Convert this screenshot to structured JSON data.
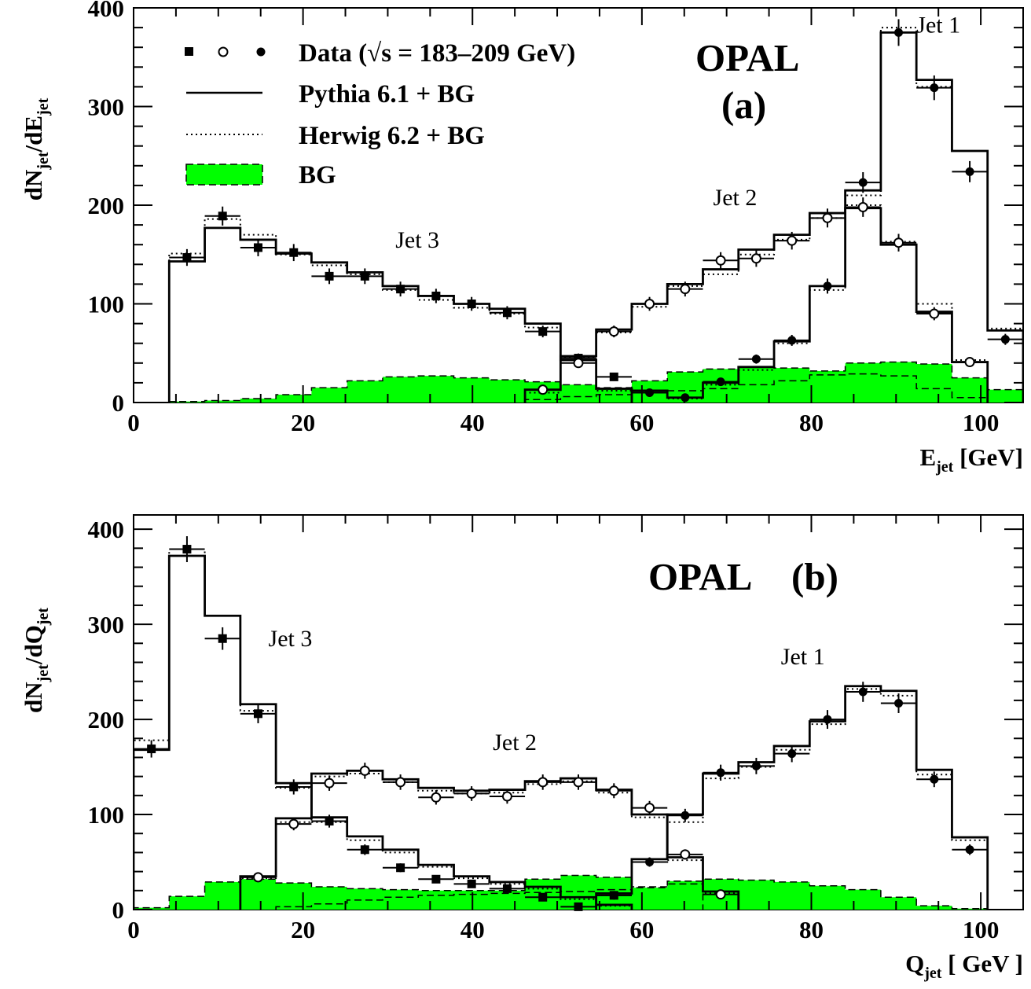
{
  "chart_data": [
    {
      "type": "line",
      "panel": "a",
      "experiment": "OPAL",
      "panel_label": "(a)",
      "xlabel": "E",
      "xlabel_sub": "jet",
      "xlabel_unit": " [GeV]",
      "ylabel_prefix": "dN",
      "ylabel_sub1": "jet",
      "ylabel_mid": "/dE",
      "ylabel_sub2": "jet",
      "xlim": [
        0,
        105
      ],
      "ylim": [
        0,
        400
      ],
      "xticks": [
        0,
        20,
        40,
        60,
        80,
        100
      ],
      "yticks": [
        0,
        100,
        200,
        300,
        400
      ],
      "legend": {
        "data_label_a": "Data (",
        "data_label_sqrt": "√",
        "data_label_b": "s = 183–209 GeV)",
        "pythia_label": "Pythia 6.1 + BG",
        "herwig_label": "Herwig 6.2 + BG",
        "bg_label": "BG"
      },
      "jet_labels": [
        {
          "text": "Jet 1",
          "x": 95,
          "y": 375
        },
        {
          "text": "Jet 2",
          "x": 71,
          "y": 200
        },
        {
          "text": "Jet 3",
          "x": 33.5,
          "y": 157
        }
      ],
      "bin_edges": [
        4.2,
        8.4,
        12.6,
        16.8,
        21.0,
        25.2,
        29.4,
        33.6,
        37.8,
        42.0,
        46.2,
        50.4,
        54.6,
        58.8,
        63.0,
        67.2,
        71.4,
        75.6,
        79.8,
        84.0,
        88.2,
        92.4,
        96.6,
        100.8,
        105.0
      ],
      "series": [
        {
          "name": "Jet 3",
          "marker": "square",
          "x_range": [
            4.2,
            58.8
          ],
          "pythia": [
            143,
            177,
            165,
            151,
            142,
            132,
            118,
            108,
            100,
            95,
            80,
            43,
            14
          ],
          "herwig": [
            151,
            186,
            170,
            150,
            139,
            130,
            114,
            104,
            96,
            90,
            76,
            46,
            12
          ],
          "data_x": [
            6.3,
            10.5,
            14.7,
            18.9,
            23.1,
            27.3,
            31.5,
            35.7,
            39.9,
            44.1,
            48.3,
            52.5,
            56.7
          ],
          "data_y": [
            147,
            189,
            157,
            152,
            128,
            128,
            115,
            108,
            100,
            91,
            72,
            45,
            26
          ]
        },
        {
          "name": "Jet 2",
          "marker": "open-circle",
          "x_range": [
            46.2,
            100.8
          ],
          "pythia": [
            13,
            47,
            74,
            100,
            120,
            135,
            155,
            170,
            192,
            197,
            160,
            92,
            41
          ],
          "herwig": [
            10,
            45,
            71,
            97,
            118,
            130,
            150,
            165,
            187,
            200,
            163,
            100,
            43
          ],
          "data_x": [
            48.3,
            52.5,
            56.7,
            60.9,
            65.1,
            69.3,
            73.5,
            77.7,
            81.9,
            86.1,
            90.3,
            94.5,
            98.7
          ],
          "data_y": [
            13,
            40,
            72,
            100,
            115,
            144,
            146,
            164,
            187,
            198,
            162,
            90,
            41
          ]
        },
        {
          "name": "Jet 1",
          "marker": "filled-circle",
          "x_range": [
            58.8,
            105.0
          ],
          "pythia": [
            12,
            5,
            20,
            36,
            62,
            118,
            215,
            375,
            327,
            255,
            73
          ],
          "herwig": [
            10,
            4,
            18,
            33,
            60,
            114,
            210,
            380,
            320,
            255,
            75
          ],
          "data_x": [
            60.9,
            65.1,
            69.3,
            73.5,
            77.7,
            81.9,
            86.1,
            90.3,
            94.5,
            98.7,
            102.9
          ],
          "data_y": [
            10,
            5,
            21,
            44,
            63,
            118,
            223,
            375,
            319,
            234,
            64
          ]
        }
      ],
      "background": {
        "total": [
          1,
          2,
          4,
          8,
          15,
          22,
          26,
          27,
          25,
          23,
          21,
          18,
          15,
          22,
          31,
          34,
          36,
          35,
          32,
          40,
          41,
          39,
          25,
          13,
          0
        ],
        "partial_range": [
          46.2,
          100.8
        ],
        "partial": [
          3,
          6,
          8,
          10,
          12,
          14,
          18,
          22,
          28,
          29,
          27,
          14,
          5
        ]
      }
    },
    {
      "type": "line",
      "panel": "b",
      "experiment": "OPAL",
      "panel_label": "(b)",
      "xlabel": "Q",
      "xlabel_sub": "jet",
      "xlabel_unit": " [ GeV ]",
      "ylabel_prefix": "dN",
      "ylabel_sub1": "jet",
      "ylabel_mid": "/dQ",
      "ylabel_sub2": "jet",
      "xlim": [
        0,
        105
      ],
      "ylim": [
        0,
        415
      ],
      "xticks": [
        0,
        20,
        40,
        60,
        80,
        100
      ],
      "yticks": [
        0,
        100,
        200,
        300,
        400
      ],
      "jet_labels": [
        {
          "text": "Jet 1",
          "x": 79,
          "y": 258
        },
        {
          "text": "Jet 2",
          "x": 45,
          "y": 168
        },
        {
          "text": "Jet 3",
          "x": 18.5,
          "y": 277
        }
      ],
      "bin_edges": [
        0,
        4.2,
        8.4,
        12.6,
        16.8,
        21.0,
        25.2,
        29.4,
        33.6,
        37.8,
        42.0,
        46.2,
        50.4,
        54.6,
        58.8,
        63.0,
        67.2,
        71.4,
        75.6,
        79.8,
        84.0,
        88.2,
        92.4,
        96.6,
        100.8
      ],
      "series": [
        {
          "name": "Jet 3",
          "marker": "square",
          "x_range": [
            0,
            58.8
          ],
          "pythia": [
            168,
            372,
            309,
            216,
            133,
            97,
            77,
            63,
            47,
            35,
            29,
            24,
            13,
            5
          ],
          "herwig": [
            178,
            379,
            309,
            209,
            128,
            92,
            73,
            60,
            45,
            33,
            27,
            22,
            11,
            4
          ],
          "data_x": [
            2.1,
            6.3,
            10.5,
            14.7,
            18.9,
            23.1,
            27.3,
            31.5,
            35.7,
            39.9,
            44.1,
            48.3,
            52.5,
            56.7
          ],
          "data_y": [
            169,
            379,
            285,
            206,
            129,
            93,
            63,
            44,
            32,
            27,
            22,
            13,
            3,
            15
          ]
        },
        {
          "name": "Jet 2",
          "marker": "open-circle",
          "x_range": [
            12.6,
            71.4
          ],
          "pythia": [
            35,
            96,
            143,
            146,
            137,
            128,
            125,
            126,
            135,
            138,
            126,
            100,
            55,
            19
          ],
          "herwig": [
            33,
            92,
            140,
            143,
            134,
            125,
            122,
            123,
            132,
            135,
            123,
            97,
            52,
            17
          ],
          "data_x": [
            14.7,
            18.9,
            23.1,
            27.3,
            31.5,
            35.7,
            39.9,
            44.1,
            48.3,
            52.5,
            56.7,
            60.9,
            65.1,
            69.3
          ],
          "data_y": [
            34,
            90,
            133,
            146,
            134,
            118,
            122,
            119,
            134,
            134,
            125,
            107,
            58,
            16
          ]
        },
        {
          "name": "Jet 1",
          "marker": "filled-circle",
          "x_range": [
            54.6,
            100.8
          ],
          "pythia": [
            17,
            53,
            100,
            143,
            155,
            172,
            198,
            235,
            230,
            147,
            76
          ],
          "herwig": [
            15,
            50,
            92,
            138,
            150,
            168,
            195,
            232,
            225,
            142,
            73
          ],
          "data_x": [
            56.7,
            60.9,
            65.1,
            69.3,
            73.5,
            77.7,
            81.9,
            86.1,
            90.3,
            94.5,
            98.7
          ],
          "data_y": [
            15,
            50,
            99,
            144,
            151,
            164,
            200,
            229,
            217,
            137,
            63
          ]
        }
      ],
      "background": {
        "total": [
          2,
          14,
          29,
          32,
          28,
          24,
          22,
          21,
          20,
          20,
          20,
          32,
          36,
          34,
          23,
          30,
          32,
          31,
          29,
          25,
          21,
          13,
          4,
          1
        ],
        "partial_range": [
          16.8,
          67.2
        ],
        "partial": [
          3,
          6,
          10,
          13,
          15,
          16,
          17,
          18,
          19,
          21,
          24,
          27
        ]
      }
    }
  ]
}
